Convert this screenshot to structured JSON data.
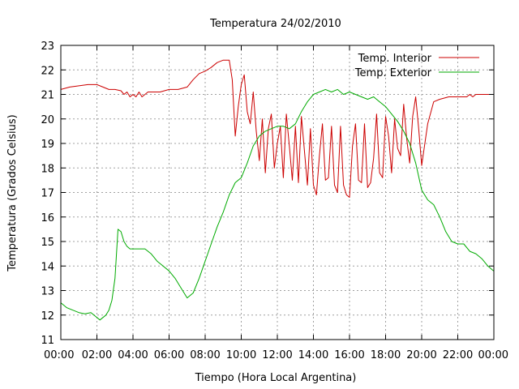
{
  "chart_data": {
    "type": "line",
    "title": "Temperatura 24/02/2010",
    "xlabel": "Tiempo (Hora Local Argentina)",
    "ylabel": "Temperatura (Grados Celsius)",
    "xlim": [
      "00:00",
      "24:00"
    ],
    "ylim": [
      11,
      23
    ],
    "x_ticks": [
      "00:00",
      "02:00",
      "04:00",
      "06:00",
      "08:00",
      "10:00",
      "12:00",
      "14:00",
      "16:00",
      "18:00",
      "20:00",
      "22:00",
      "00:00"
    ],
    "y_ticks": [
      11,
      12,
      13,
      14,
      15,
      16,
      17,
      18,
      19,
      20,
      21,
      22,
      23
    ],
    "grid": true,
    "legend_position": "top-right",
    "colors": {
      "interior": "#cc0000",
      "exterior": "#00aa00",
      "grid": "#a0a0a0",
      "axes": "#000000"
    },
    "series": [
      {
        "name": "Temp. Interior",
        "color": "#cc0000",
        "x": [
          "00:00",
          "00:30",
          "01:00",
          "01:30",
          "02:00",
          "02:20",
          "02:40",
          "03:00",
          "03:20",
          "03:30",
          "03:40",
          "03:50",
          "04:00",
          "04:10",
          "04:20",
          "04:30",
          "04:40",
          "04:50",
          "05:00",
          "05:30",
          "06:00",
          "06:30",
          "07:00",
          "07:20",
          "07:40",
          "08:00",
          "08:20",
          "08:40",
          "09:00",
          "09:20",
          "09:30",
          "09:40",
          "09:50",
          "10:00",
          "10:10",
          "10:20",
          "10:30",
          "10:40",
          "10:50",
          "11:00",
          "11:10",
          "11:20",
          "11:30",
          "11:40",
          "11:50",
          "12:00",
          "12:10",
          "12:20",
          "12:30",
          "12:40",
          "12:50",
          "13:00",
          "13:10",
          "13:20",
          "13:30",
          "13:40",
          "13:50",
          "14:00",
          "14:10",
          "14:20",
          "14:30",
          "14:40",
          "14:50",
          "15:00",
          "15:10",
          "15:20",
          "15:30",
          "15:40",
          "15:50",
          "16:00",
          "16:10",
          "16:20",
          "16:30",
          "16:40",
          "16:50",
          "17:00",
          "17:10",
          "17:20",
          "17:30",
          "17:40",
          "17:50",
          "18:00",
          "18:10",
          "18:20",
          "18:30",
          "18:40",
          "18:50",
          "19:00",
          "19:10",
          "19:20",
          "19:30",
          "19:40",
          "19:50",
          "20:00",
          "20:20",
          "20:40",
          "21:00",
          "21:30",
          "22:00",
          "22:30",
          "22:40",
          "22:50",
          "23:00",
          "23:20",
          "23:40",
          "23:59"
        ],
        "y": [
          21.2,
          21.3,
          21.35,
          21.4,
          21.4,
          21.3,
          21.2,
          21.2,
          21.15,
          21.0,
          21.1,
          20.9,
          21.0,
          20.9,
          21.1,
          20.9,
          21.0,
          21.1,
          21.1,
          21.1,
          21.2,
          21.2,
          21.3,
          21.6,
          21.85,
          21.95,
          22.1,
          22.3,
          22.4,
          22.4,
          21.6,
          19.3,
          20.5,
          21.4,
          21.8,
          20.3,
          19.8,
          21.1,
          19.5,
          18.3,
          20.0,
          17.8,
          19.6,
          20.2,
          18.0,
          19.0,
          19.7,
          17.6,
          20.2,
          18.9,
          17.5,
          19.7,
          17.4,
          20.1,
          18.7,
          17.3,
          19.6,
          17.3,
          16.9,
          18.5,
          19.8,
          17.5,
          17.6,
          19.7,
          17.3,
          17.0,
          19.7,
          17.3,
          16.9,
          16.8,
          18.9,
          19.8,
          17.5,
          17.4,
          19.8,
          17.2,
          17.4,
          18.4,
          20.2,
          17.8,
          17.6,
          20.1,
          19.3,
          17.8,
          20.0,
          18.8,
          18.5,
          20.6,
          19.2,
          18.2,
          20.1,
          20.9,
          19.6,
          18.1,
          19.8,
          20.7,
          20.8,
          20.9,
          20.9,
          20.9,
          21.0,
          20.9,
          21.0,
          21.0,
          21.0,
          21.0
        ]
      },
      {
        "name": "Temp. Exterior",
        "color": "#00aa00",
        "x": [
          "00:00",
          "00:20",
          "00:40",
          "01:00",
          "01:20",
          "01:40",
          "02:00",
          "02:10",
          "02:20",
          "02:30",
          "02:40",
          "02:50",
          "03:00",
          "03:10",
          "03:20",
          "03:30",
          "03:40",
          "03:50",
          "04:00",
          "04:20",
          "04:40",
          "05:00",
          "05:20",
          "05:40",
          "06:00",
          "06:20",
          "06:40",
          "07:00",
          "07:20",
          "07:40",
          "08:00",
          "08:20",
          "08:40",
          "09:00",
          "09:20",
          "09:40",
          "10:00",
          "10:20",
          "10:40",
          "11:00",
          "11:20",
          "11:40",
          "12:00",
          "12:20",
          "12:40",
          "13:00",
          "13:20",
          "13:40",
          "14:00",
          "14:20",
          "14:40",
          "15:00",
          "15:20",
          "15:40",
          "16:00",
          "16:20",
          "16:40",
          "17:00",
          "17:20",
          "17:40",
          "18:00",
          "18:20",
          "18:40",
          "19:00",
          "19:20",
          "19:40",
          "20:00",
          "20:20",
          "20:40",
          "21:00",
          "21:20",
          "21:40",
          "22:00",
          "22:20",
          "22:40",
          "23:00",
          "23:20",
          "23:40",
          "23:59"
        ],
        "y": [
          12.5,
          12.3,
          12.2,
          12.1,
          12.05,
          12.1,
          11.9,
          11.8,
          11.9,
          12.0,
          12.2,
          12.6,
          13.5,
          15.5,
          15.4,
          15.0,
          14.8,
          14.7,
          14.7,
          14.7,
          14.7,
          14.5,
          14.2,
          14.0,
          13.8,
          13.5,
          13.1,
          12.7,
          12.9,
          13.5,
          14.2,
          14.9,
          15.6,
          16.2,
          16.9,
          17.4,
          17.6,
          18.2,
          18.9,
          19.3,
          19.5,
          19.6,
          19.7,
          19.7,
          19.6,
          19.8,
          20.3,
          20.7,
          21.0,
          21.1,
          21.2,
          21.1,
          21.2,
          21.0,
          21.1,
          21.0,
          20.9,
          20.8,
          20.9,
          20.7,
          20.5,
          20.2,
          19.9,
          19.5,
          19.0,
          18.2,
          17.1,
          16.7,
          16.5,
          16.0,
          15.4,
          15.0,
          14.9,
          14.9,
          14.6,
          14.5,
          14.3,
          14.0,
          13.8
        ]
      }
    ]
  }
}
